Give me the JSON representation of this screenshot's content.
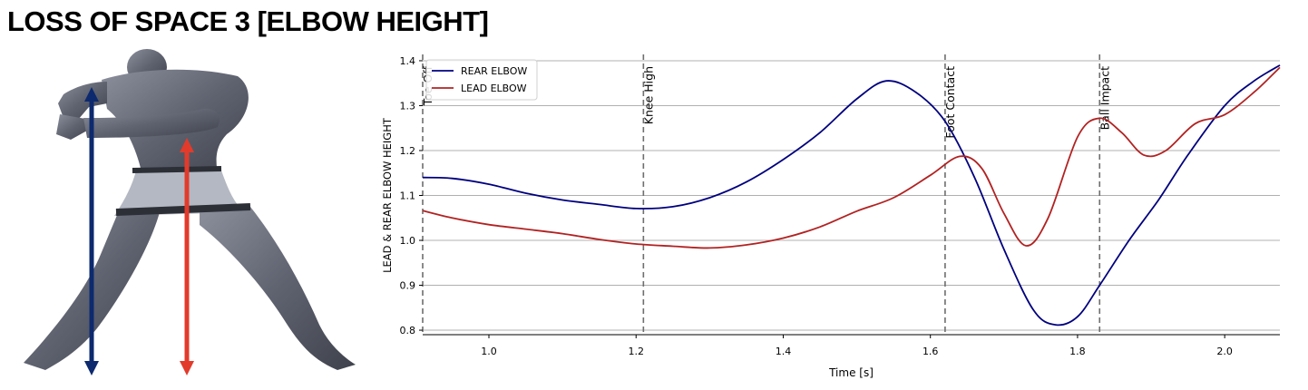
{
  "page": {
    "title": "LOSS OF SPACE 3 [ELBOW HEIGHT]"
  },
  "figure": {
    "arrow_colors": {
      "rear": "#0d2a6e",
      "lead": "#e23b2b"
    }
  },
  "chart_data": {
    "type": "line",
    "xlabel": "Time [s]",
    "ylabel": "LEAD & REAR ELBOW HEIGHT",
    "xlim": [
      0.91,
      2.075
    ],
    "ylim": [
      0.79,
      1.41
    ],
    "xticks": [
      {
        "value": 1.0,
        "label": "1.0"
      },
      {
        "value": 1.2,
        "label": "1.2"
      },
      {
        "value": 1.4,
        "label": "1.4"
      },
      {
        "value": 1.6,
        "label": "1.6"
      },
      {
        "value": 1.8,
        "label": "1.8"
      },
      {
        "value": 2.0,
        "label": "2.0"
      }
    ],
    "yticks": [
      {
        "value": 0.8,
        "label": "0.8"
      },
      {
        "value": 0.9,
        "label": "0.9"
      },
      {
        "value": 1.0,
        "label": "1.0"
      },
      {
        "value": 1.1,
        "label": "1.1"
      },
      {
        "value": 1.2,
        "label": "1.2"
      },
      {
        "value": 1.3,
        "label": "1.3"
      },
      {
        "value": 1.4,
        "label": "1.4"
      }
    ],
    "grid": "horizontal",
    "legend": "top-left",
    "events": [
      {
        "label": "Toe Off",
        "x": 0.91
      },
      {
        "label": "Knee High",
        "x": 1.21
      },
      {
        "label": "Foot Contact",
        "x": 1.62
      },
      {
        "label": "Ball Impact",
        "x": 1.83
      }
    ],
    "series": [
      {
        "name": "REAR ELBOW",
        "color": "#00007f",
        "x": [
          0.91,
          0.95,
          1.0,
          1.05,
          1.1,
          1.15,
          1.2,
          1.25,
          1.3,
          1.35,
          1.4,
          1.45,
          1.5,
          1.54,
          1.58,
          1.62,
          1.66,
          1.7,
          1.74,
          1.77,
          1.8,
          1.83,
          1.87,
          1.91,
          1.95,
          2.0,
          2.04,
          2.075
        ],
        "y": [
          1.14,
          1.138,
          1.125,
          1.105,
          1.09,
          1.08,
          1.071,
          1.075,
          1.095,
          1.13,
          1.18,
          1.24,
          1.315,
          1.355,
          1.33,
          1.265,
          1.14,
          0.98,
          0.845,
          0.812,
          0.83,
          0.9,
          1.0,
          1.09,
          1.19,
          1.3,
          1.355,
          1.39
        ]
      },
      {
        "name": "LEAD ELBOW",
        "color": "#b22222",
        "x": [
          0.91,
          0.95,
          1.0,
          1.05,
          1.1,
          1.15,
          1.2,
          1.25,
          1.3,
          1.35,
          1.4,
          1.45,
          1.5,
          1.55,
          1.6,
          1.64,
          1.67,
          1.7,
          1.73,
          1.76,
          1.8,
          1.83,
          1.86,
          1.89,
          1.92,
          1.96,
          2.0,
          2.04,
          2.075
        ],
        "y": [
          1.066,
          1.05,
          1.035,
          1.025,
          1.015,
          1.002,
          0.992,
          0.987,
          0.983,
          0.99,
          1.005,
          1.03,
          1.065,
          1.095,
          1.145,
          1.187,
          1.16,
          1.06,
          0.988,
          1.05,
          1.23,
          1.272,
          1.24,
          1.19,
          1.2,
          1.26,
          1.28,
          1.33,
          1.385
        ]
      }
    ]
  }
}
